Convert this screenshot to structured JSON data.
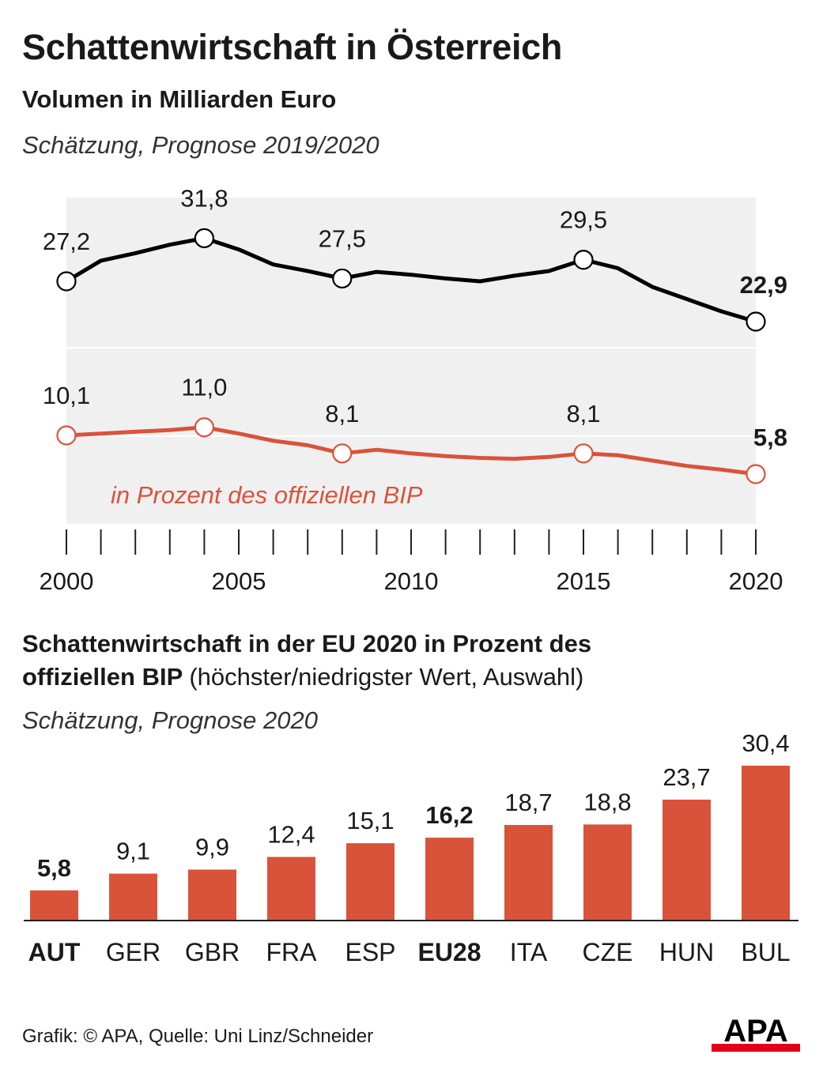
{
  "title": "Schattenwirtschaft in Österreich",
  "line_section": {
    "subtitle": "Volumen in Milliarden Euro",
    "note": "Schätzung, Prognose 2019/2020",
    "series_label": "in Prozent des offiziellen BIP"
  },
  "bar_section": {
    "title_bold_1": "Schattenwirtschaft in der EU 2020 in Prozent des",
    "title_bold_2": "offiziellen BIP",
    "title_rest": "(höchster/niedrigster Wert, Auswahl)",
    "note": "Schätzung, Prognose 2020"
  },
  "footer": "Grafik: © APA, Quelle: Uni Linz/Schneider",
  "logo_text": "APA",
  "colors": {
    "volume_line": "#000000",
    "percent_line": "#d9533a",
    "bar": "#d9533a",
    "band": "#f0f0f0",
    "logo_red": "#e2001a"
  },
  "chart_data": [
    {
      "type": "line",
      "x": [
        2000,
        2001,
        2002,
        2003,
        2004,
        2005,
        2006,
        2007,
        2008,
        2009,
        2010,
        2011,
        2012,
        2013,
        2014,
        2015,
        2016,
        2017,
        2018,
        2019,
        2020
      ],
      "xticks": [
        "2000",
        "2005",
        "2010",
        "2015",
        "2020"
      ],
      "xlim": [
        2000,
        2020
      ],
      "series": [
        {
          "values": [
            27.2,
            29.4,
            30.2,
            31.1,
            31.8,
            30.6,
            29.0,
            28.3,
            27.5,
            28.2,
            27.9,
            27.5,
            27.2,
            27.8,
            28.3,
            29.5,
            28.6,
            26.6,
            25.3,
            24.0,
            22.9
          ],
          "labels": [
            {
              "year": 2000,
              "text": "27,2"
            },
            {
              "year": 2004,
              "text": "31,8"
            },
            {
              "year": 2008,
              "text": "27,5"
            },
            {
              "year": 2015,
              "text": "29,5"
            },
            {
              "year": 2020,
              "text": "22,9",
              "bold": true
            }
          ]
        },
        {
          "name": "in Prozent des offiziellen BIP",
          "values": [
            10.1,
            10.3,
            10.5,
            10.7,
            11.0,
            10.3,
            9.5,
            9.0,
            8.1,
            8.5,
            8.1,
            7.8,
            7.6,
            7.5,
            7.7,
            8.1,
            7.9,
            7.3,
            6.7,
            6.3,
            5.8
          ],
          "labels": [
            {
              "year": 2000,
              "text": "10,1"
            },
            {
              "year": 2004,
              "text": "11,0"
            },
            {
              "year": 2008,
              "text": "8,1"
            },
            {
              "year": 2015,
              "text": "8,1"
            },
            {
              "year": 2020,
              "text": "5,8",
              "bold": true
            }
          ]
        }
      ],
      "markers_at": [
        2000,
        2004,
        2008,
        2015,
        2020
      ]
    },
    {
      "type": "bar",
      "categories": [
        "AUT",
        "GER",
        "GBR",
        "FRA",
        "ESP",
        "EU28",
        "ITA",
        "CZE",
        "HUN",
        "BUL"
      ],
      "values": [
        5.8,
        9.1,
        9.9,
        12.4,
        15.1,
        16.2,
        18.7,
        18.8,
        23.7,
        30.4
      ],
      "value_labels": [
        "5,8",
        "9,1",
        "9,9",
        "12,4",
        "15,1",
        "16,2",
        "18,7",
        "18,8",
        "23,7",
        "30,4"
      ],
      "bold_categories": [
        "AUT",
        "EU28"
      ],
      "ylim": [
        0,
        30.4
      ]
    }
  ]
}
